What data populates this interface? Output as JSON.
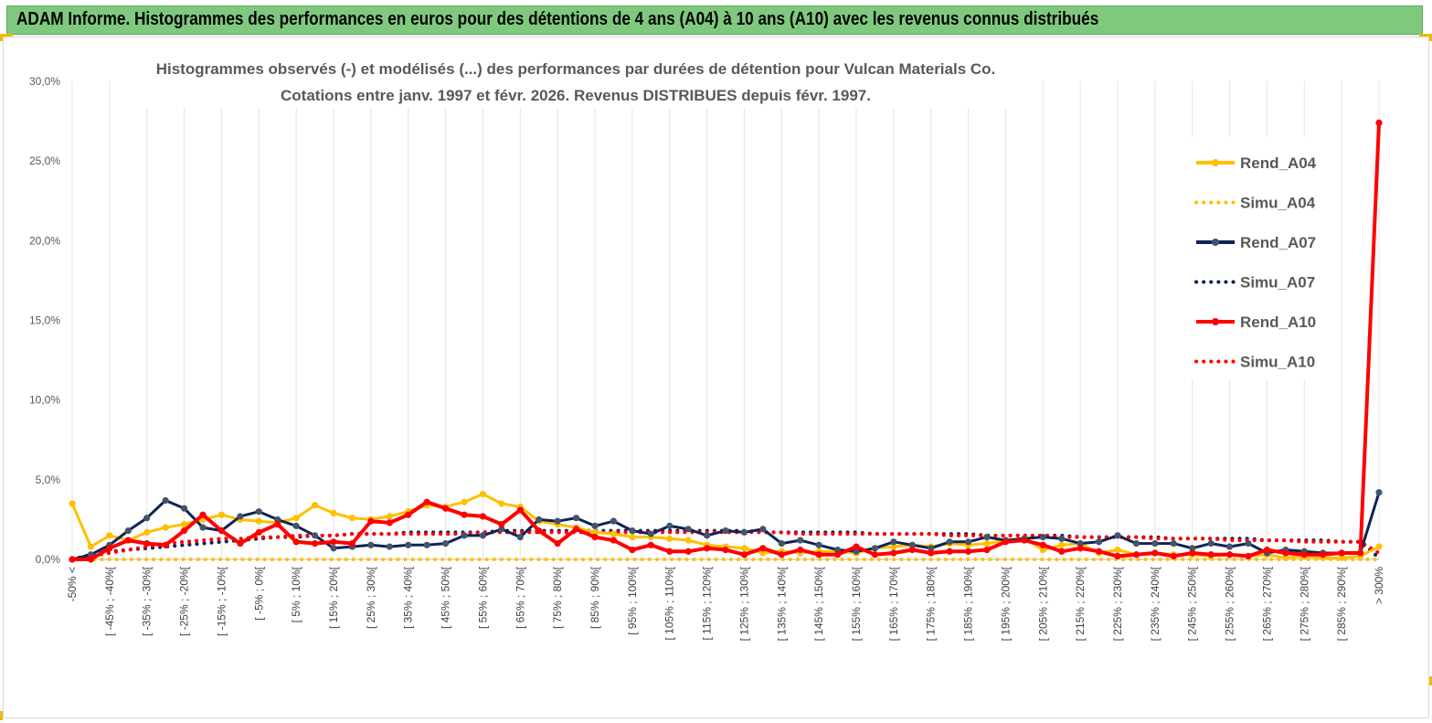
{
  "banner": {
    "title": "ADAM Informe. Histogrammes des performances en euros pour des détentions de 4 ans (A04) à 10 ans (A10) avec les revenus connus distribués"
  },
  "colors": {
    "banner_bg": "#7fc97f",
    "accent_corner": "#f3b800",
    "a04": "#ffc000",
    "a07": "#0f2356",
    "a10": "#ff0000"
  },
  "chart_data": {
    "type": "line",
    "title": [
      "Histogrammes observés (-)  et modélisés (...) des performances par durées de détention pour Vulcan Materials Co.",
      "Cotations entre janv. 1997 et févr. 2026. Revenus DISTRIBUES depuis févr. 1997."
    ],
    "ylim": [
      0,
      30
    ],
    "yticks": [
      "0,0%",
      "5,0%",
      "10,0%",
      "15,0%",
      "20,0%",
      "25,0%",
      "30,0%"
    ],
    "categories": [
      "-50% <",
      "[ -50% ; -45%[",
      "[ -45% ; -40%[",
      "[ -40% ; -35%[",
      "[ -35% ; -30%[",
      "[ -30% ; -25%[",
      "[ -25% ; -20%[",
      "[ -20% ; -15%[",
      "[ -15% ; -10%[",
      "[ -10% ; -5%[",
      "[ -5% ; 0%[",
      "[ 0% ; 5%[",
      "[ 5% ; 10%[",
      "[ 10% ; 15%[",
      "[ 15% ; 20%[",
      "[ 20% ; 25%[",
      "[ 25% ; 30%[",
      "[ 30% ; 35%[",
      "[ 35% ; 40%[",
      "[ 40% ; 45%[",
      "[ 45% ; 50%[",
      "[ 50% ; 55%[",
      "[ 55% ; 60%[",
      "[ 60% ; 65%[",
      "[ 65% ; 70%[",
      "[ 70% ; 75%[",
      "[ 75% ; 80%[",
      "[ 80% ; 85%[",
      "[ 85% ; 90%[",
      "[ 90% ; 95%[",
      "[ 95% ; 100%[",
      "[ 100% ; 105%[",
      "[ 105% ; 110%[",
      "[ 110% ; 115%[",
      "[ 115% ; 120%[",
      "[ 120% ; 125%[",
      "[ 125% ; 130%[",
      "[ 130% ; 135%[",
      "[ 135% ; 140%[",
      "[ 140% ; 145%[",
      "[ 145% ; 150%[",
      "[ 150% ; 155%[",
      "[ 155% ; 160%[",
      "[ 160% ; 165%[",
      "[ 165% ; 170%[",
      "[ 170% ; 175%[",
      "[ 175% ; 180%[",
      "[ 180% ; 185%[",
      "[ 185% ; 190%[",
      "[ 190% ; 195%[",
      "[ 195% ; 200%[",
      "[ 200% ; 205%[",
      "[ 205% ; 210%[",
      "[ 210% ; 215%[",
      "[ 215% ; 220%[",
      "[ 220% ; 225%[",
      "[ 225% ; 230%[",
      "[ 230% ; 235%[",
      "[ 235% ; 240%[",
      "[ 240% ; 245%[",
      "[ 245% ; 250%[",
      "[ 250% ; 255%[",
      "[ 255% ; 260%[",
      "[ 260% ; 265%[",
      "[ 265% ; 270%[",
      "[ 270% ; 275%[",
      "[ 275% ; 280%[",
      "[ 280% ; 285%[",
      "[ 285% ; 290%[",
      "[ 290% ; 295%[",
      "> 300%"
    ],
    "label_every": 2,
    "series": [
      {
        "name": "Rend_A04",
        "style": "solid",
        "color": "#ffc000",
        "values": [
          3.5,
          0.8,
          1.5,
          1.2,
          1.7,
          2.0,
          2.2,
          2.5,
          2.8,
          2.5,
          2.4,
          2.3,
          2.6,
          3.4,
          2.9,
          2.6,
          2.5,
          2.7,
          3.0,
          3.4,
          3.3,
          3.6,
          4.1,
          3.5,
          3.3,
          2.4,
          2.2,
          2.0,
          1.7,
          1.6,
          1.4,
          1.4,
          1.3,
          1.2,
          0.9,
          0.8,
          0.7,
          0.4,
          0.5,
          0.4,
          0.5,
          0.5,
          0.4,
          0.7,
          0.8,
          0.9,
          0.8,
          1.0,
          0.9,
          1.0,
          1.2,
          1.3,
          0.6,
          0.9,
          1.0,
          0.4,
          0.6,
          0.3,
          0.4,
          0.3,
          0.3,
          0.2,
          0.3,
          0.2,
          0.3,
          0.1,
          0.2,
          0.1,
          0.1,
          0.2,
          0.8
        ]
      },
      {
        "name": "Simu_A04",
        "style": "dotted",
        "color": "#ffc000",
        "values": [
          0.0,
          0.0,
          0.0,
          0.0,
          0.0,
          0.0,
          0.0,
          0.0,
          0.0,
          0.0,
          0.0,
          0.0,
          0.0,
          0.0,
          0.0,
          0.0,
          0.0,
          0.0,
          0.0,
          0.0,
          0.0,
          0.0,
          0.0,
          0.0,
          0.0,
          0.0,
          0.0,
          0.0,
          0.0,
          0.0,
          0.0,
          0.0,
          0.0,
          0.0,
          0.0,
          0.0,
          0.0,
          0.0,
          0.0,
          0.0,
          0.0,
          0.0,
          0.0,
          0.0,
          0.0,
          0.0,
          0.0,
          0.0,
          0.0,
          0.0,
          0.0,
          0.0,
          0.0,
          0.0,
          0.0,
          0.0,
          0.0,
          0.0,
          0.0,
          0.0,
          0.0,
          0.0,
          0.0,
          0.0,
          0.0,
          0.0,
          0.0,
          0.0,
          0.0,
          0.0,
          0.0
        ]
      },
      {
        "name": "Rend_A07",
        "style": "solid",
        "color": "#0f2356",
        "values": [
          0.0,
          0.3,
          0.9,
          1.8,
          2.6,
          3.7,
          3.2,
          2.0,
          1.8,
          2.7,
          3.0,
          2.5,
          2.1,
          1.5,
          0.7,
          0.8,
          0.9,
          0.8,
          0.9,
          0.9,
          1.0,
          1.5,
          1.5,
          1.9,
          1.4,
          2.5,
          2.4,
          2.6,
          2.1,
          2.4,
          1.8,
          1.6,
          2.1,
          1.9,
          1.5,
          1.8,
          1.7,
          1.9,
          1.0,
          1.2,
          0.9,
          0.6,
          0.5,
          0.7,
          1.1,
          0.9,
          0.7,
          1.1,
          1.1,
          1.4,
          1.2,
          1.3,
          1.4,
          1.3,
          1.0,
          1.1,
          1.5,
          1.0,
          1.0,
          1.0,
          0.7,
          1.0,
          0.8,
          1.0,
          0.4,
          0.6,
          0.5,
          0.4,
          0.4,
          0.4,
          4.2
        ]
      },
      {
        "name": "Simu_A07",
        "style": "dotted",
        "color": "#0f2356",
        "values": [
          0.0,
          0.3,
          0.5,
          0.6,
          0.7,
          0.8,
          0.9,
          1.0,
          1.1,
          1.2,
          1.3,
          1.4,
          1.4,
          1.5,
          1.5,
          1.6,
          1.6,
          1.6,
          1.7,
          1.7,
          1.7,
          1.7,
          1.7,
          1.8,
          1.8,
          1.8,
          1.8,
          1.8,
          1.8,
          1.8,
          1.8,
          1.8,
          1.8,
          1.8,
          1.8,
          1.8,
          1.8,
          1.7,
          1.7,
          1.7,
          1.7,
          1.7,
          1.7,
          1.6,
          1.6,
          1.6,
          1.6,
          1.6,
          1.6,
          1.5,
          1.5,
          1.5,
          1.5,
          1.5,
          1.4,
          1.4,
          1.4,
          1.4,
          1.4,
          1.3,
          1.3,
          1.3,
          1.3,
          1.3,
          1.2,
          1.2,
          1.2,
          1.2,
          1.1,
          1.1,
          0.1
        ]
      },
      {
        "name": "Rend_A10",
        "style": "solid",
        "color": "#ff0000",
        "values": [
          0.0,
          0.0,
          0.7,
          1.2,
          1.0,
          0.9,
          1.8,
          2.8,
          1.8,
          1.0,
          1.7,
          2.2,
          1.1,
          1.0,
          1.1,
          1.0,
          2.4,
          2.3,
          2.8,
          3.6,
          3.2,
          2.8,
          2.7,
          2.2,
          3.1,
          1.8,
          1.0,
          1.9,
          1.4,
          1.2,
          0.6,
          0.9,
          0.5,
          0.5,
          0.7,
          0.6,
          0.3,
          0.7,
          0.3,
          0.6,
          0.3,
          0.3,
          0.8,
          0.3,
          0.4,
          0.6,
          0.4,
          0.5,
          0.5,
          0.6,
          1.1,
          1.2,
          0.9,
          0.5,
          0.7,
          0.5,
          0.2,
          0.3,
          0.4,
          0.2,
          0.4,
          0.3,
          0.3,
          0.2,
          0.6,
          0.4,
          0.3,
          0.3,
          0.4,
          0.4,
          27.4
        ]
      },
      {
        "name": "Simu_A10",
        "style": "dotted",
        "color": "#ff0000",
        "values": [
          0.0,
          0.2,
          0.4,
          0.6,
          0.8,
          1.0,
          1.1,
          1.2,
          1.3,
          1.3,
          1.4,
          1.4,
          1.5,
          1.5,
          1.5,
          1.6,
          1.6,
          1.6,
          1.6,
          1.6,
          1.6,
          1.6,
          1.7,
          1.7,
          1.7,
          1.7,
          1.7,
          1.7,
          1.7,
          1.7,
          1.7,
          1.7,
          1.7,
          1.7,
          1.7,
          1.7,
          1.7,
          1.7,
          1.7,
          1.6,
          1.6,
          1.6,
          1.6,
          1.6,
          1.6,
          1.6,
          1.6,
          1.5,
          1.5,
          1.5,
          1.5,
          1.5,
          1.5,
          1.4,
          1.4,
          1.4,
          1.4,
          1.4,
          1.3,
          1.3,
          1.3,
          1.3,
          1.2,
          1.2,
          1.2,
          1.2,
          1.1,
          1.1,
          1.1,
          1.1,
          0.4
        ]
      }
    ],
    "legend": {
      "placement": "right",
      "entries": [
        "Rend_A04",
        "Simu_A04",
        "Rend_A07",
        "Simu_A07",
        "Rend_A10",
        "Simu_A10"
      ]
    }
  }
}
